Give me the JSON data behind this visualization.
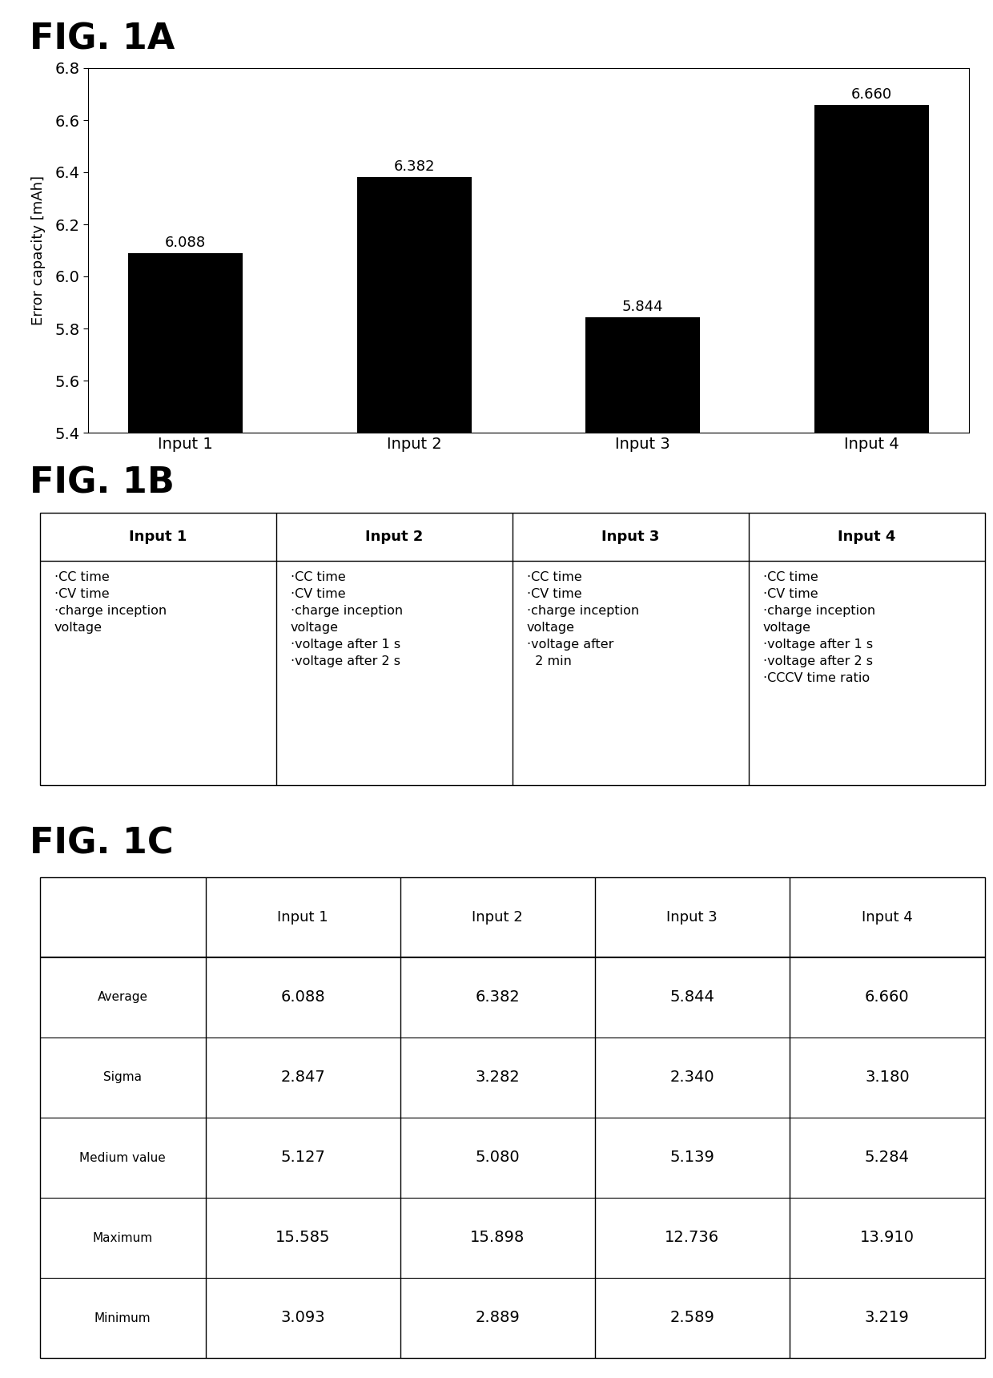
{
  "fig1a_title": "FIG. 1A",
  "fig1b_title": "FIG. 1B",
  "fig1c_title": "FIG. 1C",
  "bar_categories": [
    "Input 1",
    "Input 2",
    "Input 3",
    "Input 4"
  ],
  "bar_values": [
    6.088,
    6.382,
    5.844,
    6.66
  ],
  "bar_color": "#000000",
  "ylabel": "Error capacity [mAh]",
  "ylim": [
    5.4,
    6.8
  ],
  "yticks": [
    5.4,
    5.6,
    5.8,
    6.0,
    6.2,
    6.4,
    6.6,
    6.8
  ],
  "table1b_headers": [
    "Input 1",
    "Input 2",
    "Input 3",
    "Input 4"
  ],
  "table1b_content": [
    "·CC time\n·CV time\n·charge inception\nvoltage",
    "·CC time\n·CV time\n·charge inception\nvoltage\n·voltage after 1 s\n·voltage after 2 s",
    "·CC time\n·CV time\n·charge inception\nvoltage\n·voltage after\n  2 min",
    "·CC time\n·CV time\n·charge inception\nvoltage\n·voltage after 1 s\n·voltage after 2 s\n·CCCV time ratio"
  ],
  "table1c_headers": [
    "",
    "Input 1",
    "Input 2",
    "Input 3",
    "Input 4"
  ],
  "table1c_rows": [
    [
      "Average",
      "6.088",
      "6.382",
      "5.844",
      "6.660"
    ],
    [
      "Sigma",
      "2.847",
      "3.282",
      "2.340",
      "3.180"
    ],
    [
      "Medium value",
      "5.127",
      "5.080",
      "5.139",
      "5.284"
    ],
    [
      "Maximum",
      "15.585",
      "15.898",
      "12.736",
      "13.910"
    ],
    [
      "Minimum",
      "3.093",
      "2.889",
      "2.589",
      "3.219"
    ]
  ],
  "background_color": "#ffffff",
  "text_color": "#000000"
}
